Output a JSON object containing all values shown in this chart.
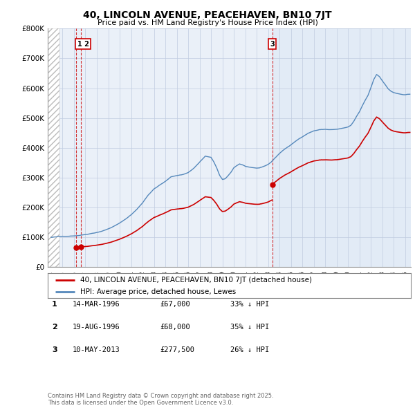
{
  "title": "40, LINCOLN AVENUE, PEACEHAVEN, BN10 7JT",
  "subtitle": "Price paid vs. HM Land Registry's House Price Index (HPI)",
  "ylim": [
    0,
    800000
  ],
  "yticks": [
    0,
    100000,
    200000,
    300000,
    400000,
    500000,
    600000,
    700000,
    800000
  ],
  "ytick_labels": [
    "£0",
    "£100K",
    "£200K",
    "£300K",
    "£400K",
    "£500K",
    "£600K",
    "£700K",
    "£800K"
  ],
  "xlim_left": 1993.7,
  "xlim_right": 2025.5,
  "hatch_end": 1994.75,
  "sales": [
    {
      "date_str": "14-MAR-1996",
      "date_num": 1996.2,
      "price": 67000,
      "label": "1"
    },
    {
      "date_str": "19-AUG-1996",
      "date_num": 1996.63,
      "price": 68000,
      "label": "2"
    },
    {
      "date_str": "10-MAY-2013",
      "date_num": 2013.36,
      "price": 277500,
      "label": "3"
    }
  ],
  "legend_line1": "40, LINCOLN AVENUE, PEACEHAVEN, BN10 7JT (detached house)",
  "legend_line2": "HPI: Average price, detached house, Lewes",
  "table_rows": [
    {
      "num": "1",
      "date": "14-MAR-1996",
      "price": "£67,000",
      "pct": "33% ↓ HPI"
    },
    {
      "num": "2",
      "date": "19-AUG-1996",
      "price": "£68,000",
      "pct": "35% ↓ HPI"
    },
    {
      "num": "3",
      "date": "10-MAY-2013",
      "price": "£277,500",
      "pct": "26% ↓ HPI"
    }
  ],
  "footer": "Contains HM Land Registry data © Crown copyright and database right 2025.\nThis data is licensed under the Open Government Licence v3.0.",
  "red_color": "#cc0000",
  "blue_color": "#5588bb",
  "blue_fill": "#dce8f5",
  "hatch_color": "#bbbbbb",
  "bg_color": "#ffffff",
  "plot_bg": "#eaf0f8",
  "grid_color": "#c0cce0"
}
